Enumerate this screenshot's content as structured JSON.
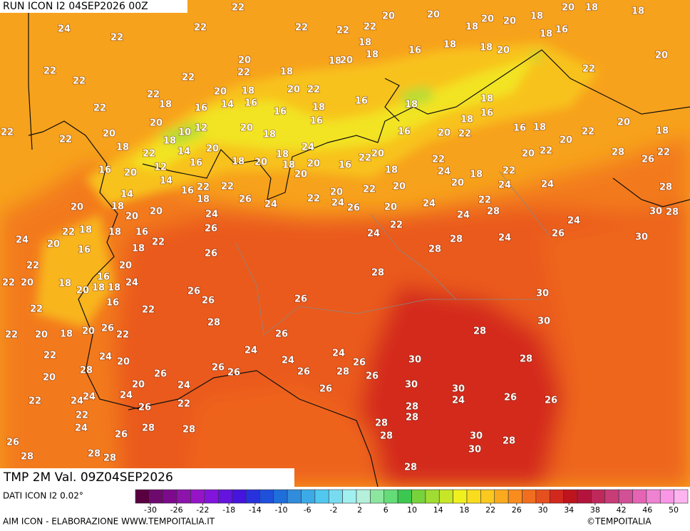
{
  "header": {
    "run": "RUN ICON I2 04SEP2026 00Z"
  },
  "map": {
    "labels": [
      22,
      24,
      22,
      22,
      22,
      22,
      22,
      20,
      20,
      20,
      20,
      18,
      18,
      20,
      18,
      18,
      22,
      22,
      22,
      22,
      20,
      22,
      18,
      20,
      18,
      22,
      20,
      16,
      14,
      16,
      18,
      22,
      20,
      10,
      12,
      20,
      18,
      16,
      18,
      16,
      16,
      18,
      20,
      18,
      18,
      16,
      18,
      18,
      20,
      18,
      16,
      22,
      20,
      22,
      22,
      20,
      18,
      22,
      18,
      14,
      20,
      16,
      20,
      12,
      14,
      16,
      18,
      20,
      18,
      24,
      18,
      20,
      20,
      16,
      22,
      20,
      18,
      20,
      18,
      16,
      20,
      22,
      18,
      18,
      16,
      16,
      18,
      20,
      22,
      20,
      18,
      22,
      20,
      22,
      22,
      24,
      22,
      24,
      20,
      18,
      22,
      28,
      24,
      24,
      20,
      22,
      24,
      26,
      24,
      20,
      22,
      22,
      24,
      26,
      24,
      26,
      22,
      22,
      18,
      16,
      20,
      18,
      20,
      20,
      14,
      18,
      18,
      22,
      16,
      22,
      18,
      20,
      24,
      16,
      22,
      22,
      20,
      20,
      16,
      24,
      26,
      26,
      26,
      22,
      16,
      18,
      20,
      18,
      18,
      22,
      22,
      20,
      18,
      20,
      26,
      22,
      22,
      24,
      20,
      20,
      28,
      26,
      28,
      24,
      26,
      24,
      26,
      24,
      28,
      26,
      26,
      26,
      26,
      26,
      24,
      22,
      24,
      20,
      24,
      24,
      22,
      22,
      26,
      24,
      26,
      28,
      28,
      26,
      28,
      28,
      28,
      26,
      28,
      28,
      28,
      24,
      26,
      24,
      24,
      28,
      26,
      28,
      30,
      28,
      30,
      30,
      30,
      28,
      30,
      28,
      30,
      30,
      24,
      26,
      26,
      28,
      28,
      28,
      28,
      30,
      30,
      28,
      28
    ]
  },
  "footer": {
    "title": "TMP 2M Val. 09Z04SEP2026",
    "source": "DATI ICON I2 0.02°",
    "credit": "AIM ICON - ELABORAZIONE WWW.TEMPOITALIA.IT",
    "copyright": "©TEMPOITALIA"
  },
  "legend": {
    "ticks": [
      -30,
      -26,
      -22,
      -18,
      -14,
      -10,
      -6,
      -2,
      2,
      6,
      10,
      14,
      18,
      22,
      26,
      30,
      34,
      38,
      42,
      46,
      50
    ],
    "colors": [
      "#5a0040",
      "#6e0a6e",
      "#7d0a8c",
      "#8c14aa",
      "#9614c8",
      "#8214dc",
      "#6414dc",
      "#4614dc",
      "#2832dc",
      "#1e50dc",
      "#1e6edc",
      "#328cdc",
      "#3caae6",
      "#50c8f0",
      "#78dcf0",
      "#a0f0f0",
      "#b4f0dc",
      "#8ce6a0",
      "#64dc78",
      "#3cc850",
      "#78d23c",
      "#a0dc32",
      "#c8e628",
      "#f0f01e",
      "#fadc1e",
      "#fac81e",
      "#faaa1e",
      "#fa8c1e",
      "#f06e1e",
      "#e6501e",
      "#d2281e",
      "#be141e",
      "#b4143c",
      "#be285a",
      "#c83c78",
      "#d25096",
      "#e664b4",
      "#f082d2",
      "#fa96e6",
      "#ffb4f0"
    ]
  }
}
